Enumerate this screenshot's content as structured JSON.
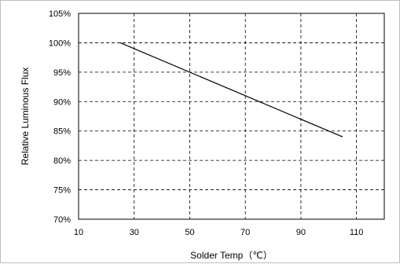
{
  "chart_data": {
    "type": "line",
    "title": "",
    "xlabel": "Solder Temp（℃）",
    "ylabel": "Relative Luminous Flux",
    "xlim": [
      10,
      120
    ],
    "ylim": [
      70,
      105
    ],
    "x_ticks": [
      10,
      30,
      50,
      70,
      90,
      110
    ],
    "y_ticks": [
      70,
      75,
      80,
      85,
      90,
      95,
      100,
      105
    ],
    "y_tick_suffix": "%",
    "grid": true,
    "grid_style": "dashed",
    "series": [
      {
        "x": [
          25,
          105
        ],
        "y": [
          100,
          84
        ],
        "color": "#000000"
      }
    ]
  }
}
